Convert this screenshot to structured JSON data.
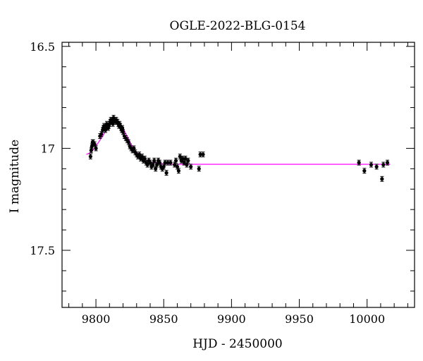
{
  "chart_data": {
    "type": "scatter",
    "title": "OGLE-2022-BLG-0154",
    "xlabel": "HJD - 2450000",
    "ylabel": "I magnitude",
    "xlim": [
      9775,
      10035
    ],
    "ylim": [
      17.78,
      16.48
    ],
    "y_inverted": true,
    "x_ticks": [
      9800,
      9850,
      9900,
      9950,
      10000
    ],
    "x_tick_labels": [
      "9800",
      "9850",
      "9900",
      "9950",
      "10000"
    ],
    "y_ticks": [
      16.5,
      17,
      17.5
    ],
    "y_tick_labels": [
      "16.5",
      "17",
      "17.5"
    ],
    "grid": false,
    "colors": {
      "points": "#000000",
      "model": "#ff00ff",
      "axes": "#000000"
    },
    "series": [
      {
        "kind": "data",
        "x": [
          9796.0,
          9796.5,
          9797.0,
          9797.5,
          9798.0,
          9799.0,
          9800.0,
          9803.0,
          9804.0,
          9805.0,
          9805.5,
          9806.0,
          9806.5,
          9807.0,
          9807.5,
          9808.0,
          9808.5,
          9809.0,
          9809.5,
          9810.0,
          9810.5,
          9811.0,
          9811.5,
          9812.0,
          9812.5,
          9813.0,
          9813.5,
          9814.0,
          9814.5,
          9815.0,
          9815.5,
          9816.0,
          9816.5,
          9817.0,
          9817.5,
          9818.0,
          9818.5,
          9819.0,
          9819.5,
          9820.0,
          9821.0,
          9822.0,
          9823.0,
          9824.0,
          9825.0,
          9826.0,
          9827.0,
          9828.0,
          9829.0,
          9830.0,
          9831.0,
          9832.0,
          9833.0,
          9834.0,
          9835.0,
          9836.0,
          9837.0,
          9838.0,
          9839.0,
          9840.0,
          9841.0,
          9842.0,
          9843.0,
          9844.0,
          9845.0,
          9846.0,
          9847.0,
          9848.0,
          9849.0,
          9850.0,
          9851.0,
          9852.0,
          9853.0,
          9855.0,
          9858.0,
          9859.0,
          9860.0,
          9861.0,
          9862.0,
          9863.0,
          9864.0,
          9865.0,
          9866.0,
          9867.0,
          9868.0,
          9870.0,
          9876.0,
          9877.0,
          9879.0,
          9994.0,
          9998.0,
          10003.0,
          10007.0,
          10011.0,
          10012.0,
          10015.0
        ],
        "y": [
          17.04,
          17.01,
          16.99,
          16.97,
          16.97,
          16.98,
          17.0,
          16.94,
          16.93,
          16.91,
          16.9,
          16.89,
          16.9,
          16.91,
          16.89,
          16.88,
          16.89,
          16.9,
          16.89,
          16.88,
          16.87,
          16.86,
          16.87,
          16.86,
          16.88,
          16.85,
          16.86,
          16.86,
          16.87,
          16.86,
          16.87,
          16.87,
          16.88,
          16.89,
          16.88,
          16.89,
          16.9,
          16.91,
          16.9,
          16.92,
          16.94,
          16.95,
          16.96,
          16.97,
          16.99,
          17.0,
          17.01,
          17.0,
          17.02,
          17.03,
          17.04,
          17.03,
          17.05,
          17.04,
          17.06,
          17.05,
          17.07,
          17.08,
          17.06,
          17.07,
          17.09,
          17.08,
          17.06,
          17.1,
          17.08,
          17.06,
          17.07,
          17.09,
          17.1,
          17.09,
          17.07,
          17.12,
          17.07,
          17.07,
          17.08,
          17.06,
          17.09,
          17.11,
          17.04,
          17.06,
          17.05,
          17.07,
          17.05,
          17.08,
          17.06,
          17.09,
          17.1,
          17.03,
          17.03,
          17.07,
          17.11,
          17.08,
          17.09,
          17.15,
          17.08,
          17.07
        ],
        "yerr": [
          0.012,
          0.012,
          0.012,
          0.012,
          0.012,
          0.012,
          0.012,
          0.012,
          0.012,
          0.012,
          0.012,
          0.012,
          0.012,
          0.012,
          0.012,
          0.012,
          0.012,
          0.012,
          0.012,
          0.012,
          0.012,
          0.012,
          0.012,
          0.012,
          0.012,
          0.012,
          0.012,
          0.012,
          0.012,
          0.012,
          0.012,
          0.012,
          0.012,
          0.012,
          0.012,
          0.012,
          0.012,
          0.012,
          0.012,
          0.012,
          0.012,
          0.012,
          0.012,
          0.012,
          0.012,
          0.012,
          0.012,
          0.012,
          0.012,
          0.012,
          0.012,
          0.012,
          0.012,
          0.012,
          0.012,
          0.012,
          0.012,
          0.012,
          0.012,
          0.012,
          0.012,
          0.012,
          0.012,
          0.012,
          0.012,
          0.012,
          0.012,
          0.012,
          0.012,
          0.012,
          0.012,
          0.012,
          0.012,
          0.012,
          0.012,
          0.012,
          0.012,
          0.012,
          0.012,
          0.012,
          0.012,
          0.012,
          0.012,
          0.012,
          0.012,
          0.012,
          0.012,
          0.012,
          0.012,
          0.012,
          0.012,
          0.012,
          0.012,
          0.012,
          0.012,
          0.012
        ]
      },
      {
        "kind": "model",
        "x": [
          9793,
          9796,
          9799,
          9802,
          9805,
          9808,
          9811,
          9814,
          9817,
          9820,
          9823,
          9826,
          9829,
          9832,
          9835,
          9838,
          9841,
          9844,
          9847,
          9850,
          9855,
          9860,
          9870,
          9880,
          9900,
          9950,
          10000,
          10017
        ],
        "y": [
          17.03,
          17.02,
          17.0,
          16.97,
          16.94,
          16.905,
          16.88,
          16.865,
          16.87,
          16.9,
          16.94,
          16.98,
          17.01,
          17.035,
          17.05,
          17.06,
          17.067,
          17.07,
          17.074,
          17.076,
          17.077,
          17.078,
          17.078,
          17.078,
          17.078,
          17.078,
          17.078,
          17.078
        ]
      }
    ]
  }
}
